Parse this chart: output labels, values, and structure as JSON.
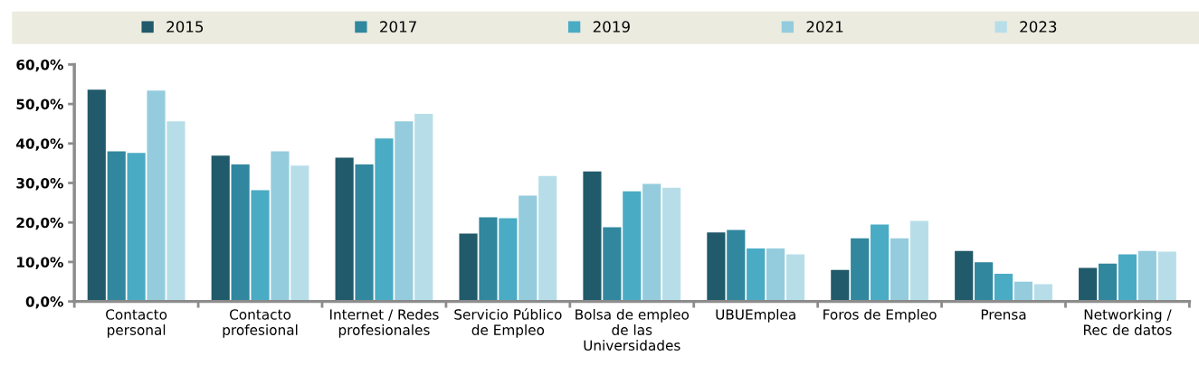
{
  "chart_data": {
    "type": "bar",
    "categories": [
      "Contacto\npersonal",
      "Contacto\nprofesional",
      "Internet / Redes\nprofesionales",
      "Servicio Público\nde Empleo",
      "Bolsa de empleo\nde las\nUniversidades",
      "UBUEmplea",
      "Foros de Empleo",
      "Prensa",
      "Networking /\nRec de datos"
    ],
    "series": [
      {
        "name": "2015",
        "color": "#215a6a",
        "values": [
          53.6,
          36.9,
          36.4,
          17.2,
          32.9,
          17.5,
          8.0,
          12.8,
          8.5
        ]
      },
      {
        "name": "2017",
        "color": "#31879e",
        "values": [
          38.0,
          34.7,
          34.7,
          21.3,
          18.8,
          18.1,
          16.0,
          9.9,
          9.6
        ]
      },
      {
        "name": "2019",
        "color": "#4aabc5",
        "values": [
          37.6,
          28.2,
          41.3,
          21.1,
          27.9,
          13.4,
          19.5,
          7.0,
          11.9
        ]
      },
      {
        "name": "2021",
        "color": "#94ccdd",
        "values": [
          53.4,
          38.0,
          45.6,
          26.8,
          29.8,
          13.4,
          16.0,
          5.0,
          12.8
        ]
      },
      {
        "name": "2023",
        "color": "#b7dee8",
        "values": [
          45.6,
          34.4,
          47.5,
          31.8,
          28.8,
          11.9,
          20.4,
          4.4,
          12.6
        ]
      }
    ],
    "ylim": [
      0,
      60
    ],
    "yticks": [
      {
        "value": 0,
        "label": "0,0%"
      },
      {
        "value": 10,
        "label": "10,0%"
      },
      {
        "value": 20,
        "label": "20,0%"
      },
      {
        "value": 30,
        "label": "30,0%"
      },
      {
        "value": 40,
        "label": "40,0%"
      },
      {
        "value": 50,
        "label": "50,0%"
      },
      {
        "value": 60,
        "label": "60,0%"
      }
    ],
    "grid": false,
    "legend": "top"
  }
}
